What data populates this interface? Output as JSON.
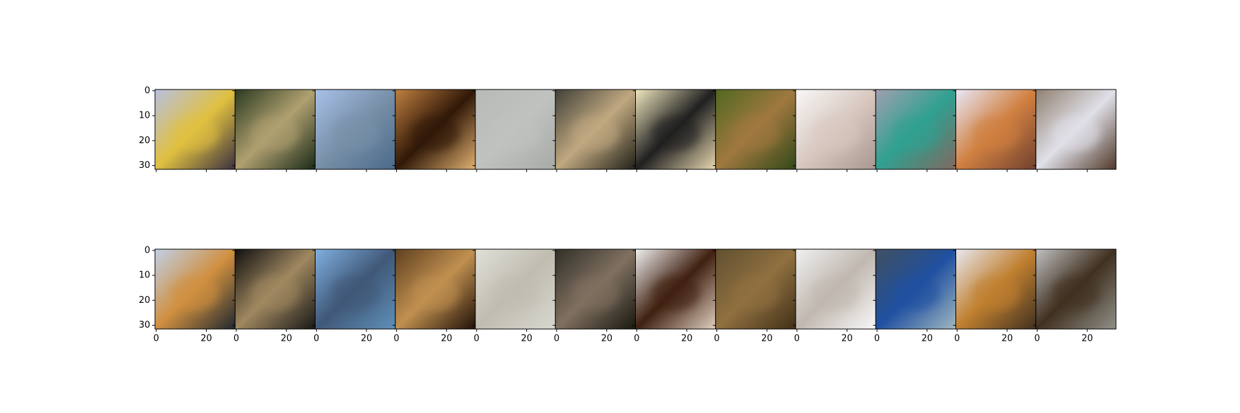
{
  "chart_data": {
    "type": "image",
    "xlim": [
      -0.5,
      31.5
    ],
    "ylim": [
      31.5,
      -0.5
    ],
    "xticks": [
      0,
      20
    ],
    "yticks": [
      0,
      10,
      20,
      30
    ]
  }
}
